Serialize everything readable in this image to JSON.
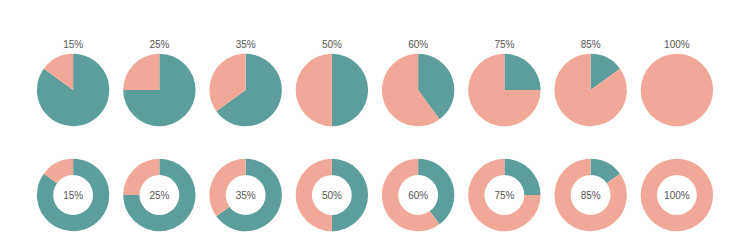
{
  "chart_data": [
    {
      "type": "pie",
      "values": [
        85,
        15
      ],
      "colors": [
        "#5B9E9B",
        "#F2A898"
      ],
      "value_labels": [
        null,
        "15%"
      ]
    },
    {
      "type": "donut",
      "values": [
        85,
        15
      ],
      "colors": [
        "#5B9E9B",
        "#F2A898"
      ],
      "value_labels": [
        null,
        "15%"
      ]
    },
    {
      "type": "pie",
      "values": [
        75,
        25
      ],
      "colors": [
        "#5B9E9B",
        "#F2A898"
      ],
      "value_labels": [
        null,
        "25%"
      ]
    },
    {
      "type": "donut",
      "values": [
        75,
        25
      ],
      "colors": [
        "#5B9E9B",
        "#F2A898"
      ],
      "value_labels": [
        null,
        "25%"
      ]
    },
    {
      "type": "pie",
      "values": [
        65,
        35
      ],
      "colors": [
        "#5B9E9B",
        "#F2A898"
      ],
      "value_labels": [
        null,
        "35%"
      ]
    },
    {
      "type": "donut",
      "values": [
        65,
        35
      ],
      "colors": [
        "#5B9E9B",
        "#F2A898"
      ],
      "value_labels": [
        null,
        "35%"
      ]
    },
    {
      "type": "pie",
      "values": [
        50,
        50
      ],
      "colors": [
        "#5B9E9B",
        "#F2A898"
      ],
      "value_labels": [
        null,
        "50%"
      ]
    },
    {
      "type": "donut",
      "values": [
        50,
        50
      ],
      "colors": [
        "#5B9E9B",
        "#F2A898"
      ],
      "value_labels": [
        null,
        "50%"
      ]
    },
    {
      "type": "pie",
      "values": [
        40,
        60
      ],
      "colors": [
        "#5B9E9B",
        "#F2A898"
      ],
      "value_labels": [
        null,
        "60%"
      ]
    },
    {
      "type": "donut",
      "values": [
        40,
        60
      ],
      "colors": [
        "#5B9E9B",
        "#F2A898"
      ],
      "value_labels": [
        null,
        "60%"
      ]
    },
    {
      "type": "pie",
      "values": [
        25,
        75
      ],
      "colors": [
        "#5B9E9B",
        "#F2A898"
      ],
      "value_labels": [
        null,
        "75%"
      ]
    },
    {
      "type": "donut",
      "values": [
        25,
        75
      ],
      "colors": [
        "#5B9E9B",
        "#F2A898"
      ],
      "value_labels": [
        null,
        "75%"
      ]
    },
    {
      "type": "pie",
      "values": [
        15,
        85
      ],
      "colors": [
        "#5B9E9B",
        "#F2A898"
      ],
      "value_labels": [
        null,
        "85%"
      ]
    },
    {
      "type": "donut",
      "values": [
        15,
        85
      ],
      "colors": [
        "#5B9E9B",
        "#F2A898"
      ],
      "value_labels": [
        null,
        "85%"
      ]
    },
    {
      "type": "pie",
      "values": [
        100
      ],
      "colors": [
        "#F2A898"
      ],
      "value_labels": [
        "100%"
      ]
    },
    {
      "type": "donut",
      "values": [
        100
      ],
      "colors": [
        "#F2A898"
      ],
      "value_labels": [
        "100%"
      ]
    }
  ]
}
